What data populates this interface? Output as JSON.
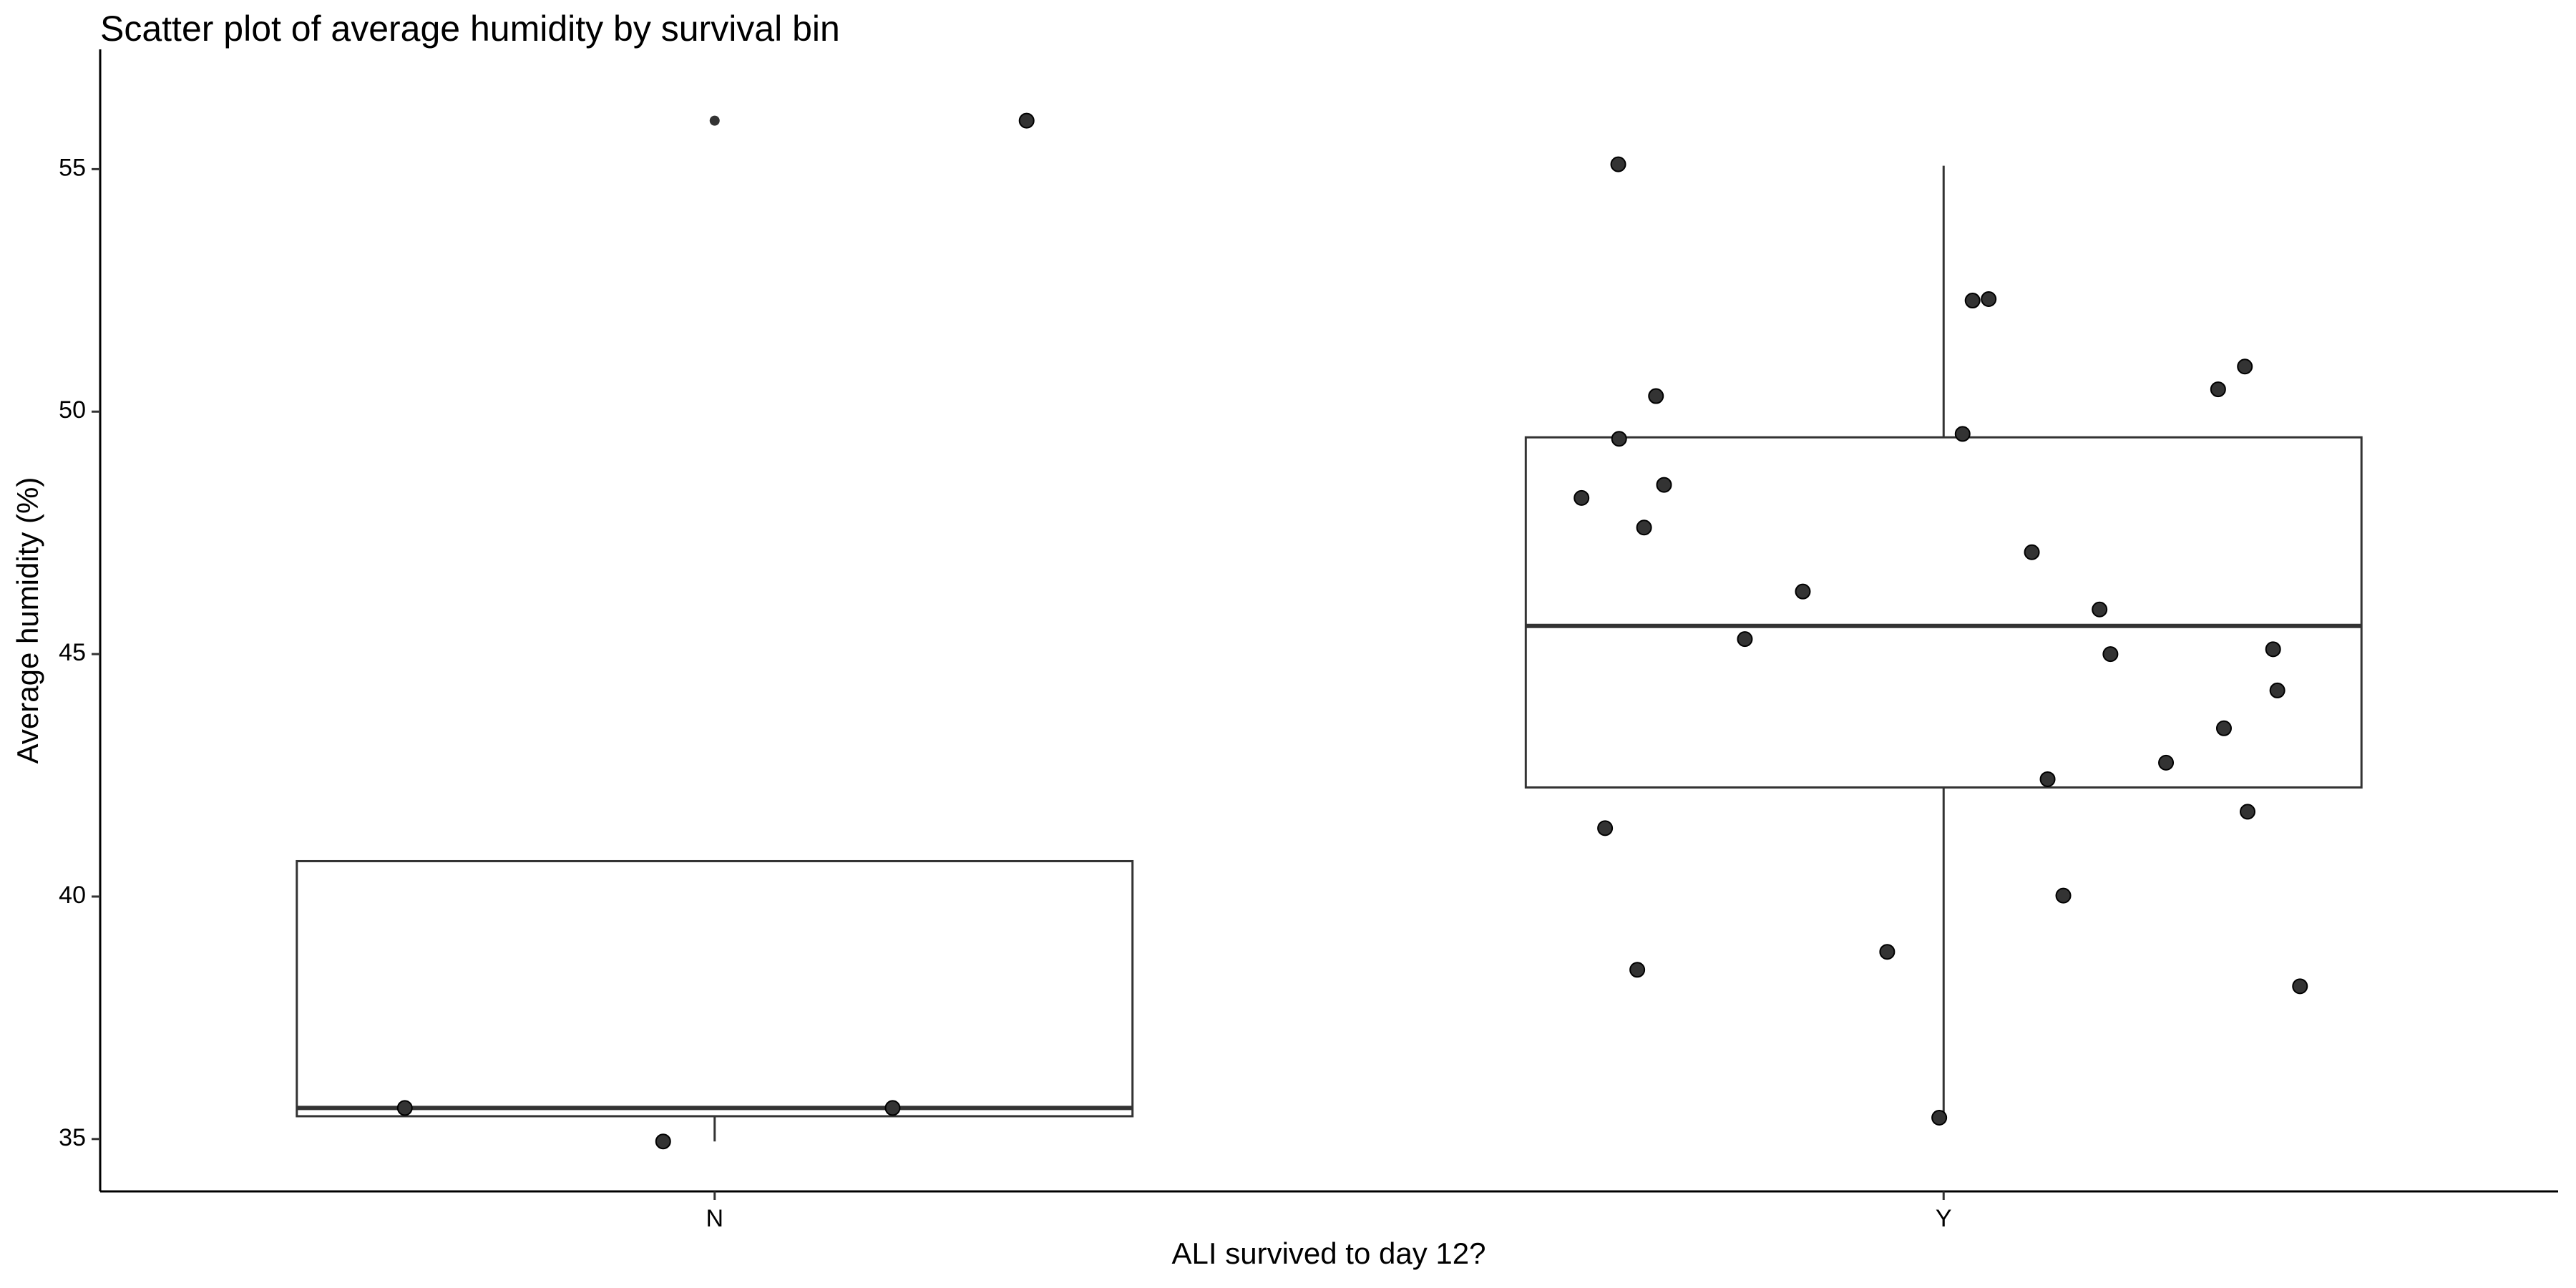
{
  "chart_data": {
    "type": "box",
    "title": "Scatter plot of average humidity by survival bin",
    "x_label": "ALI survived to day 12?",
    "y_label": "Average humidity (%)",
    "categories": [
      "N",
      "Y"
    ],
    "boxes": [
      {
        "whisker_low": 34.95,
        "q1": 35.47,
        "median": 35.64,
        "q3": 40.73,
        "whisker_high": 40.73,
        "outliers": [
          56.0
        ]
      },
      {
        "whisker_low": 35.47,
        "q1": 42.25,
        "median": 45.58,
        "q3": 49.47,
        "whisker_high": 55.07,
        "outliers": []
      }
    ],
    "points": [
      [
        56.0,
        35.64,
        35.64,
        34.95
      ],
      [
        55.1,
        52.29,
        52.32,
        50.93,
        50.32,
        50.46,
        49.54,
        49.44,
        48.49,
        48.22,
        47.61,
        47.1,
        46.29,
        45.92,
        45.31,
        45.0,
        45.1,
        44.25,
        43.47,
        42.76,
        42.42,
        41.75,
        41.41,
        40.02,
        38.86,
        38.15,
        38.49,
        35.44
      ]
    ],
    "point_color": "#333333",
    "ylim": [
      33.92,
      57.47
    ],
    "yticks": [
      35,
      40,
      45,
      50,
      55
    ]
  }
}
